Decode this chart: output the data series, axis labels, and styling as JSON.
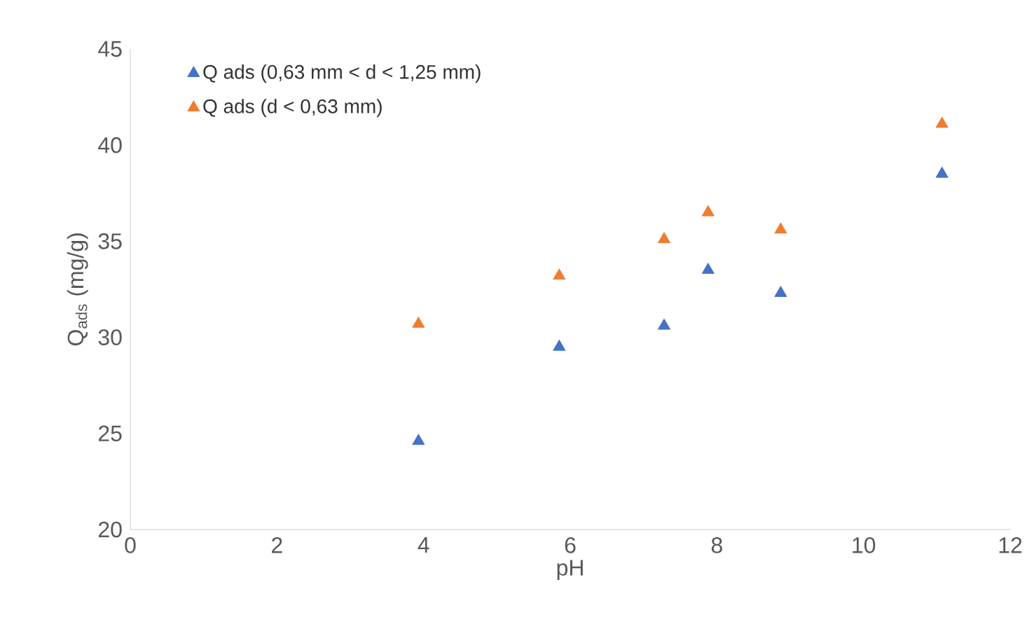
{
  "chart_data": {
    "type": "scatter",
    "xlabel": "pH",
    "ylabel": "Q$_{ads}$ (mg/g)",
    "marker": "triangle",
    "legend": "top left",
    "grid": false,
    "xlim": [
      0,
      12
    ],
    "ylim": [
      20,
      45
    ],
    "xticks": [
      0,
      2,
      4,
      6,
      8,
      10,
      12
    ],
    "yticks": [
      20,
      25,
      30,
      35,
      40,
      45
    ],
    "series": [
      {
        "name": "Q ads (0,63 mm < d < 1,25 mm)",
        "color": "#4472c4",
        "x": [
          3.93,
          5.85,
          7.28,
          7.88,
          8.87,
          11.07
        ],
        "values": [
          24.6,
          29.5,
          30.6,
          33.5,
          32.3,
          38.5
        ]
      },
      {
        "name": "Q ads (d < 0,63 mm)",
        "color": "#ed7d31",
        "x": [
          3.93,
          5.85,
          7.28,
          7.88,
          8.87,
          11.07
        ],
        "values": [
          30.7,
          33.2,
          35.1,
          36.5,
          35.6,
          41.1
        ]
      }
    ]
  }
}
